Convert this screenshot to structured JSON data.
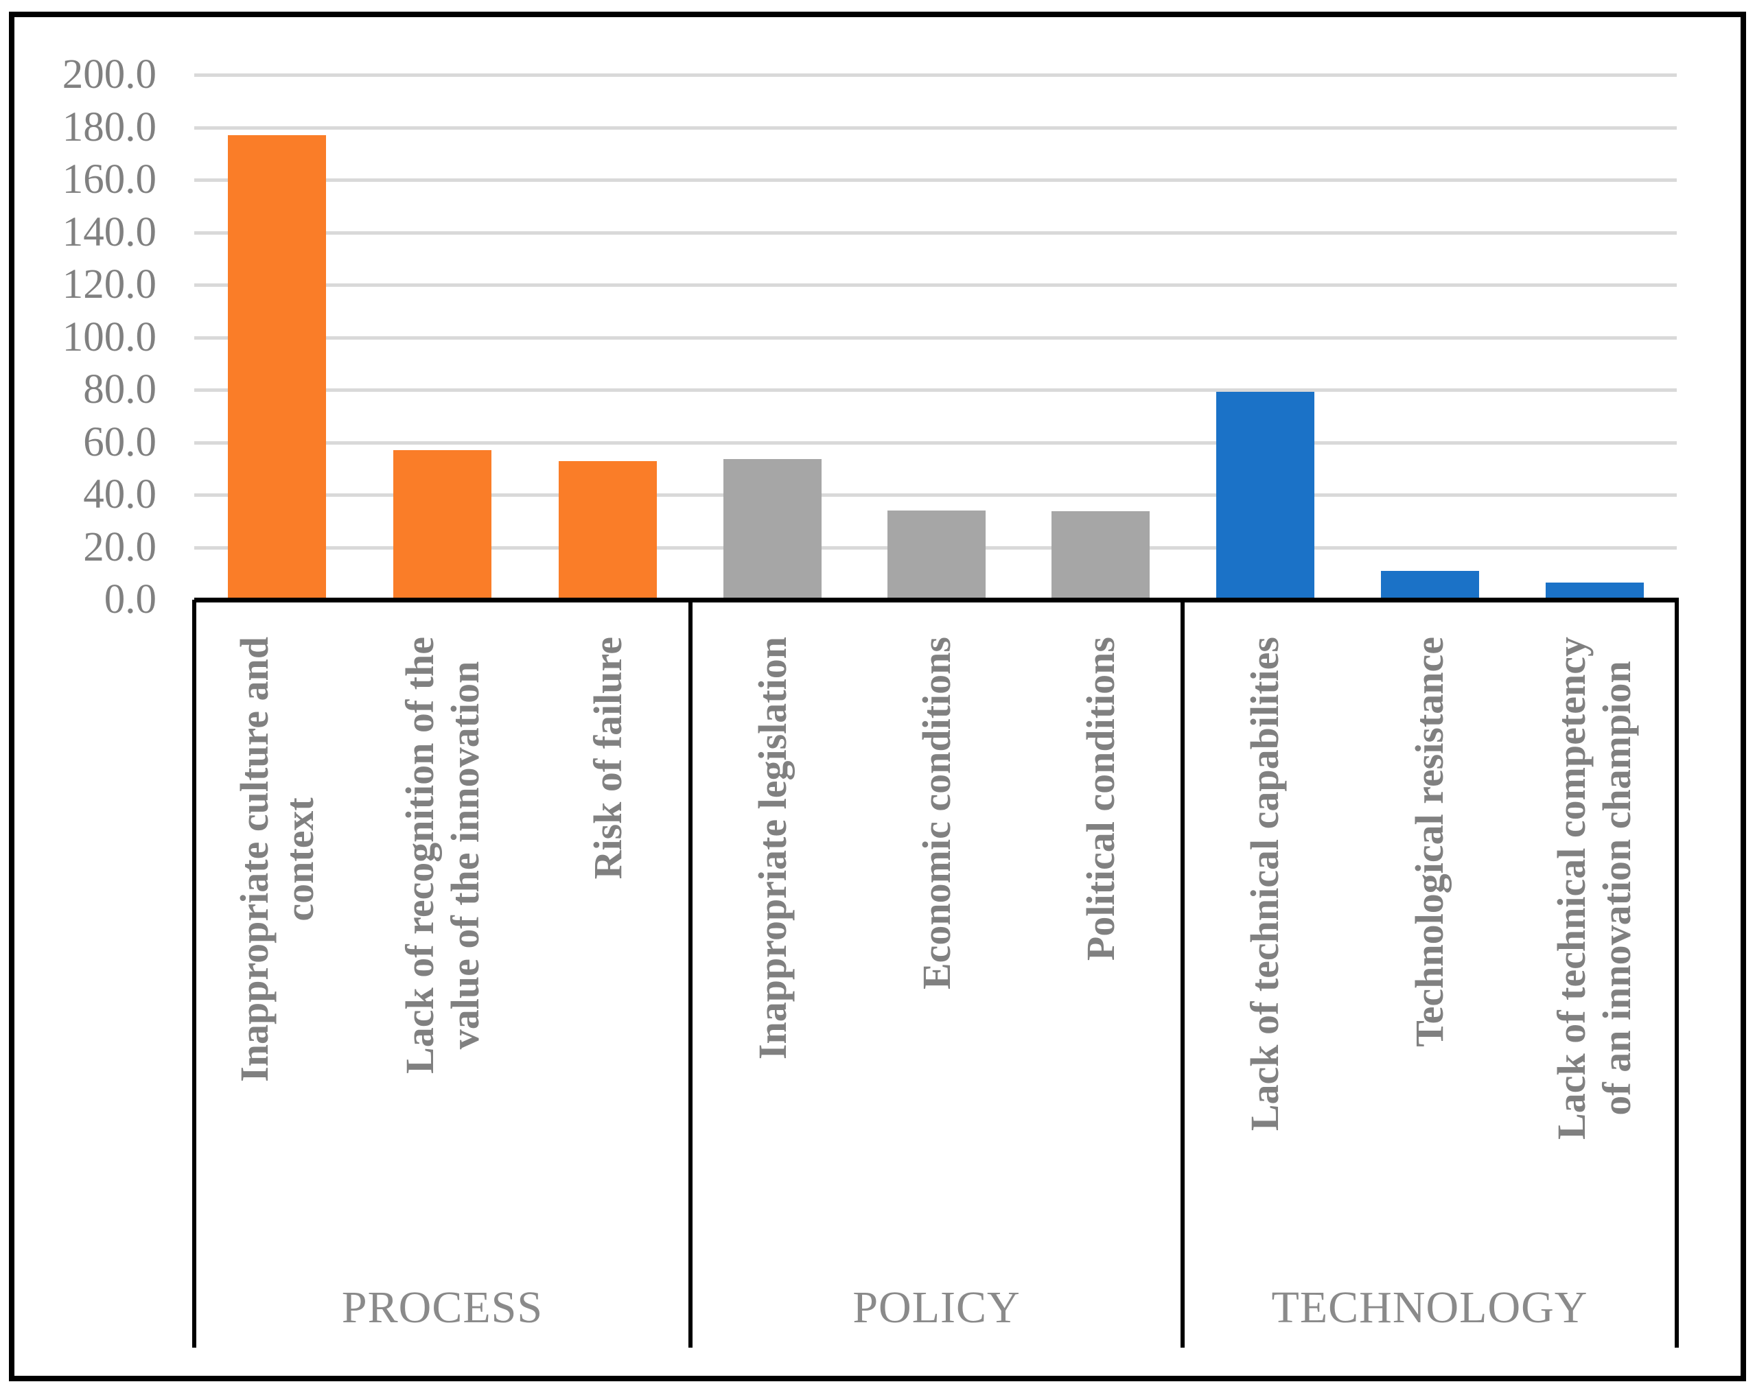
{
  "chart_data": {
    "type": "bar",
    "title": "",
    "xlabel": "",
    "ylabel": "",
    "ylim": [
      0,
      200
    ],
    "ytick_step": 20,
    "ytick_decimals": 1,
    "grid": true,
    "legend": "none",
    "colors": {
      "process": "#FA7D28",
      "policy": "#A6A6A6",
      "technology": "#1B72C7",
      "gridline": "#D9D9D9",
      "axis_text": "#808080",
      "group_text": "#8a8a8a",
      "axis_line": "#000000"
    },
    "groups": [
      {
        "name": "PROCESS",
        "color_key": "process",
        "bars": [
          {
            "lines": [
              "Inappropriate culture and",
              "context"
            ],
            "value": 177.0
          },
          {
            "lines": [
              "Lack of recognition of the",
              "value of the innovation"
            ],
            "value": 57.0
          },
          {
            "lines": [
              "Risk of failure"
            ],
            "value": 52.8
          }
        ]
      },
      {
        "name": "POLICY",
        "color_key": "policy",
        "bars": [
          {
            "lines": [
              "Inappropriate legislation"
            ],
            "value": 53.7
          },
          {
            "lines": [
              "Economic conditions"
            ],
            "value": 34.0
          },
          {
            "lines": [
              "Political conditions"
            ],
            "value": 33.8
          }
        ]
      },
      {
        "name": "TECHNOLOGY",
        "color_key": "technology",
        "bars": [
          {
            "lines": [
              "Lack of technical capabilities"
            ],
            "value": 79.2
          },
          {
            "lines": [
              "Technological resistance"
            ],
            "value": 11.0
          },
          {
            "lines": [
              "Lack of technical competency",
              "of an innovation champion"
            ],
            "value": 6.6
          }
        ]
      }
    ]
  }
}
